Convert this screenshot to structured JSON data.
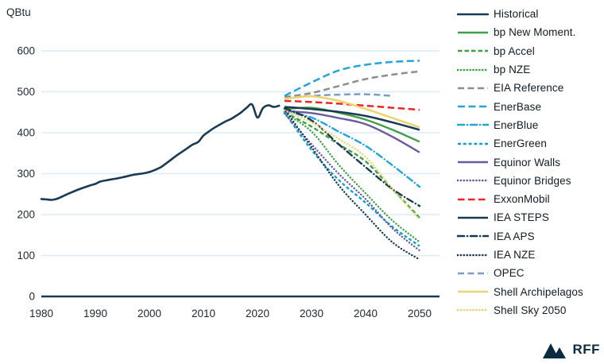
{
  "logo": {
    "text": "RFF",
    "icon": "mountains"
  },
  "chart_data": {
    "type": "line",
    "title": "",
    "ylabel": "QBtu",
    "xlabel": "",
    "xlim": [
      1980,
      2050
    ],
    "ylim": [
      0,
      600
    ],
    "x_ticks": [
      1980,
      1990,
      2000,
      2010,
      2020,
      2030,
      2040,
      2050
    ],
    "y_ticks": [
      0,
      100,
      200,
      300,
      400,
      500,
      600
    ],
    "grid": "horizontal",
    "legend_position": "right",
    "colors": {
      "navy": "#1a3a54",
      "green": "#3fa046",
      "gray": "#8e8d8c",
      "cyan": "#24a4da",
      "teal": "#14a0c8",
      "purple": "#695a9d",
      "red": "#ee2524",
      "steel": "#7e9cc3",
      "yellow": "#ebd36e",
      "grid": "#dcecf8",
      "text": "#1d2730"
    },
    "series": [
      {
        "name": "Historical",
        "color": "#1a3a54",
        "dash": "",
        "cap": "round",
        "width": 2.6,
        "points": [
          [
            1980,
            238
          ],
          [
            1981,
            237
          ],
          [
            1982,
            236
          ],
          [
            1983,
            239
          ],
          [
            1985,
            251
          ],
          [
            1987,
            262
          ],
          [
            1989,
            271
          ],
          [
            1990,
            275
          ],
          [
            1991,
            281
          ],
          [
            1993,
            286
          ],
          [
            1995,
            291
          ],
          [
            1997,
            297
          ],
          [
            1999,
            301
          ],
          [
            2000,
            304
          ],
          [
            2001,
            309
          ],
          [
            2002,
            315
          ],
          [
            2003,
            324
          ],
          [
            2005,
            344
          ],
          [
            2007,
            362
          ],
          [
            2008,
            371
          ],
          [
            2009,
            377
          ],
          [
            2010,
            393
          ],
          [
            2011,
            403
          ],
          [
            2012,
            412
          ],
          [
            2014,
            427
          ],
          [
            2015,
            433
          ],
          [
            2016,
            441
          ],
          [
            2017,
            450
          ],
          [
            2018,
            461
          ],
          [
            2019,
            469
          ],
          [
            2020,
            437
          ],
          [
            2021,
            460
          ],
          [
            2022,
            467
          ],
          [
            2023,
            463
          ],
          [
            2024,
            466
          ]
        ]
      },
      {
        "name": "bp New Moment.",
        "color": "#3fa046",
        "dash": "",
        "cap": "butt",
        "width": 2.4,
        "points": [
          [
            2025,
            458
          ],
          [
            2030,
            461
          ],
          [
            2035,
            449
          ],
          [
            2040,
            432
          ],
          [
            2045,
            407
          ],
          [
            2050,
            378
          ]
        ]
      },
      {
        "name": "bp Accel",
        "color": "#3fa046",
        "dash": "5.5,3",
        "cap": "butt",
        "width": 2.4,
        "points": [
          [
            2025,
            450
          ],
          [
            2030,
            415
          ],
          [
            2035,
            372
          ],
          [
            2040,
            330
          ],
          [
            2045,
            262
          ],
          [
            2050,
            192
          ]
        ]
      },
      {
        "name": "bp NZE",
        "color": "#3fa046",
        "dash": "0.1,3.8",
        "cap": "round",
        "width": 2.4,
        "points": [
          [
            2025,
            448
          ],
          [
            2030,
            403
          ],
          [
            2035,
            322
          ],
          [
            2040,
            252
          ],
          [
            2045,
            185
          ],
          [
            2050,
            133
          ]
        ]
      },
      {
        "name": "EIA Reference",
        "color": "#8e8d8c",
        "dash": "8,4.5",
        "cap": "butt",
        "width": 2.5,
        "points": [
          [
            2025,
            487
          ],
          [
            2030,
            497
          ],
          [
            2035,
            514
          ],
          [
            2040,
            531
          ],
          [
            2045,
            542
          ],
          [
            2050,
            550
          ]
        ]
      },
      {
        "name": "EnerBase",
        "color": "#24a4da",
        "dash": "9,4.5",
        "cap": "butt",
        "width": 2.5,
        "points": [
          [
            2025,
            490
          ],
          [
            2030,
            523
          ],
          [
            2035,
            552
          ],
          [
            2040,
            566
          ],
          [
            2045,
            573
          ],
          [
            2050,
            576
          ]
        ]
      },
      {
        "name": "EnerBlue",
        "color": "#24a4da",
        "dash": "8,4,0.1,4",
        "cap": "round",
        "width": 2.4,
        "points": [
          [
            2025,
            452
          ],
          [
            2030,
            437
          ],
          [
            2035,
            403
          ],
          [
            2040,
            368
          ],
          [
            2045,
            320
          ],
          [
            2050,
            268
          ]
        ]
      },
      {
        "name": "EnerGreen",
        "color": "#14a0c8",
        "dash": "4,2.8",
        "cap": "butt",
        "width": 2.4,
        "points": [
          [
            2025,
            450
          ],
          [
            2030,
            358
          ],
          [
            2035,
            285
          ],
          [
            2040,
            229
          ],
          [
            2045,
            170
          ],
          [
            2050,
            123
          ]
        ]
      },
      {
        "name": "Equinor Walls",
        "color": "#695a9d",
        "dash": "",
        "cap": "butt",
        "width": 2.4,
        "points": [
          [
            2025,
            453
          ],
          [
            2030,
            448
          ],
          [
            2035,
            436
          ],
          [
            2040,
            421
          ],
          [
            2045,
            390
          ],
          [
            2050,
            352
          ]
        ]
      },
      {
        "name": "Equinor Bridges",
        "color": "#695a9d",
        "dash": "0.1,3.8",
        "cap": "round",
        "width": 2.4,
        "points": [
          [
            2025,
            447
          ],
          [
            2030,
            372
          ],
          [
            2035,
            300
          ],
          [
            2040,
            238
          ],
          [
            2045,
            166
          ],
          [
            2050,
            112
          ]
        ]
      },
      {
        "name": "ExxonMobil",
        "color": "#ee2524",
        "dash": "8.5,4.5",
        "cap": "butt",
        "width": 2.5,
        "points": [
          [
            2025,
            478
          ],
          [
            2030,
            475
          ],
          [
            2035,
            471
          ],
          [
            2040,
            466
          ],
          [
            2045,
            461
          ],
          [
            2050,
            456
          ]
        ]
      },
      {
        "name": "IEA STEPS",
        "color": "#1a3a54",
        "dash": "",
        "cap": "butt",
        "width": 2.5,
        "points": [
          [
            2025,
            463
          ],
          [
            2030,
            458
          ],
          [
            2035,
            451
          ],
          [
            2040,
            441
          ],
          [
            2045,
            425
          ],
          [
            2050,
            407
          ]
        ]
      },
      {
        "name": "IEA APS",
        "color": "#1a3a54",
        "dash": "8,4,0.1,4",
        "cap": "round",
        "width": 2.4,
        "points": [
          [
            2025,
            460
          ],
          [
            2030,
            430
          ],
          [
            2035,
            372
          ],
          [
            2040,
            316
          ],
          [
            2045,
            262
          ],
          [
            2050,
            221
          ]
        ]
      },
      {
        "name": "IEA NZE",
        "color": "#1a3a54",
        "dash": "0.1,3.8",
        "cap": "round",
        "width": 2.4,
        "points": [
          [
            2025,
            458
          ],
          [
            2030,
            365
          ],
          [
            2035,
            272
          ],
          [
            2040,
            200
          ],
          [
            2045,
            132
          ],
          [
            2050,
            90
          ]
        ]
      },
      {
        "name": "OPEC",
        "color": "#7e9cc3",
        "dash": "8,4.5",
        "cap": "butt",
        "width": 2.5,
        "points": [
          [
            2025,
            484
          ],
          [
            2030,
            490
          ],
          [
            2035,
            493
          ],
          [
            2040,
            494
          ],
          [
            2045,
            490
          ]
        ]
      },
      {
        "name": "Shell Archipelagos",
        "color": "#ebd36e",
        "dash": "",
        "cap": "butt",
        "width": 2.5,
        "points": [
          [
            2025,
            483
          ],
          [
            2030,
            489
          ],
          [
            2035,
            478
          ],
          [
            2040,
            458
          ],
          [
            2045,
            436
          ],
          [
            2050,
            413
          ]
        ]
      },
      {
        "name": "Shell Sky 2050",
        "color": "#ebd36e",
        "dash": "0.1,3.8",
        "cap": "round",
        "width": 2.4,
        "points": [
          [
            2025,
            455
          ],
          [
            2030,
            425
          ],
          [
            2035,
            385
          ],
          [
            2040,
            341
          ],
          [
            2045,
            262
          ],
          [
            2050,
            188
          ]
        ]
      }
    ]
  }
}
